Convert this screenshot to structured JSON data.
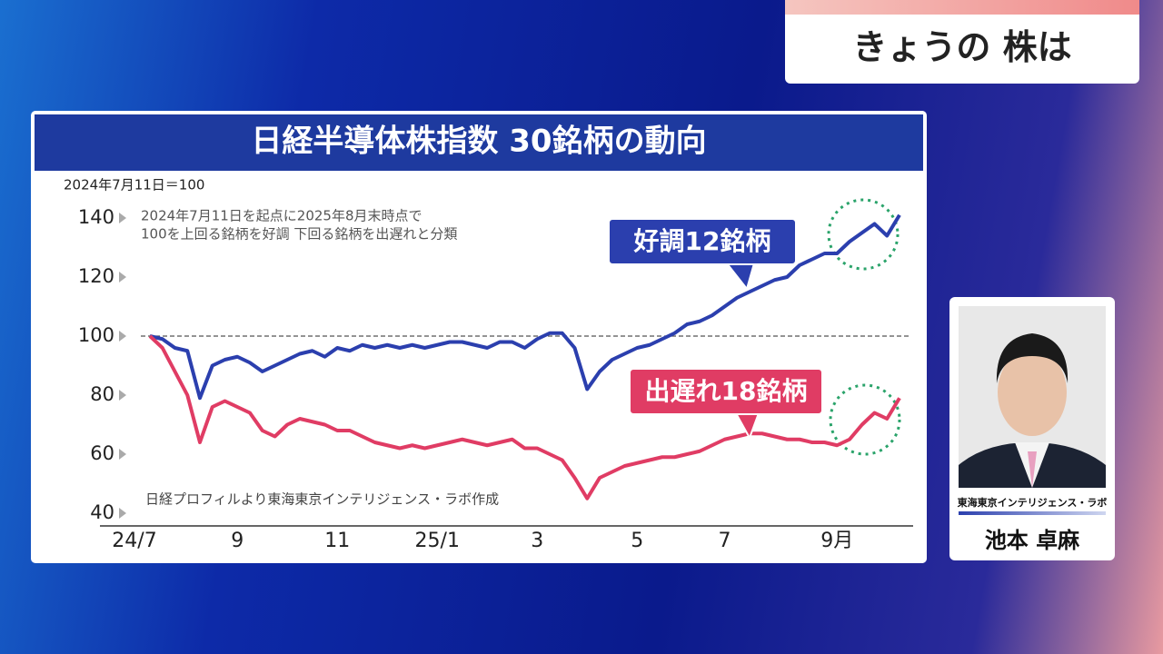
{
  "header": {
    "title": "きょうの 株は"
  },
  "chart_data": {
    "type": "line",
    "title": "日経半導体株指数 30銘柄の動向",
    "subtitle": "2024年7月11日＝100",
    "notes": [
      "2024年7月11日を起点に2025年8月末時点で",
      "100を上回る銘柄を好調 下回る銘柄を出遅れと分類"
    ],
    "source": "日経プロフィルより東海東京インテリジェンス・ラボ作成",
    "categories": [
      "24/7",
      null,
      null,
      null,
      null,
      null,
      null,
      "9",
      null,
      null,
      null,
      null,
      null,
      null,
      null,
      "11",
      null,
      null,
      null,
      null,
      null,
      null,
      null,
      "25/1",
      null,
      null,
      null,
      null,
      null,
      null,
      null,
      "3",
      null,
      null,
      null,
      null,
      null,
      null,
      null,
      "5",
      null,
      null,
      null,
      null,
      null,
      null,
      "7",
      null,
      null,
      null,
      null,
      null,
      null,
      null,
      null,
      "9月",
      null,
      null,
      null,
      null,
      null
    ],
    "series": [
      {
        "name": "好調12銘柄",
        "color": "#2b3fae",
        "values": [
          100,
          99,
          96,
          95,
          79,
          90,
          92,
          93,
          91,
          88,
          90,
          92,
          94,
          95,
          93,
          96,
          95,
          97,
          96,
          97,
          96,
          97,
          96,
          97,
          98,
          98,
          97,
          96,
          98,
          98,
          96,
          99,
          101,
          101,
          96,
          82,
          88,
          92,
          94,
          96,
          97,
          99,
          101,
          104,
          105,
          107,
          110,
          113,
          115,
          117,
          119,
          120,
          124,
          126,
          128,
          128,
          132,
          135,
          138,
          134,
          141
        ]
      },
      {
        "name": "出遅れ18銘柄",
        "color": "#e03c64",
        "values": [
          100,
          96,
          88,
          80,
          64,
          76,
          78,
          76,
          74,
          68,
          66,
          70,
          72,
          71,
          70,
          68,
          68,
          66,
          64,
          63,
          62,
          63,
          62,
          63,
          64,
          65,
          64,
          63,
          64,
          65,
          62,
          62,
          60,
          58,
          52,
          45,
          52,
          54,
          56,
          57,
          58,
          59,
          59,
          60,
          61,
          63,
          65,
          66,
          67,
          67,
          66,
          65,
          65,
          64,
          64,
          63,
          65,
          70,
          74,
          72,
          79
        ]
      }
    ],
    "ylim": [
      40,
      140
    ],
    "yticks": [
      40,
      60,
      80,
      100,
      120,
      140
    ],
    "reference_line": 100
  },
  "presenter": {
    "affiliation": "東海東京インテリジェンス・ラボ",
    "name": "池本 卓麻"
  }
}
